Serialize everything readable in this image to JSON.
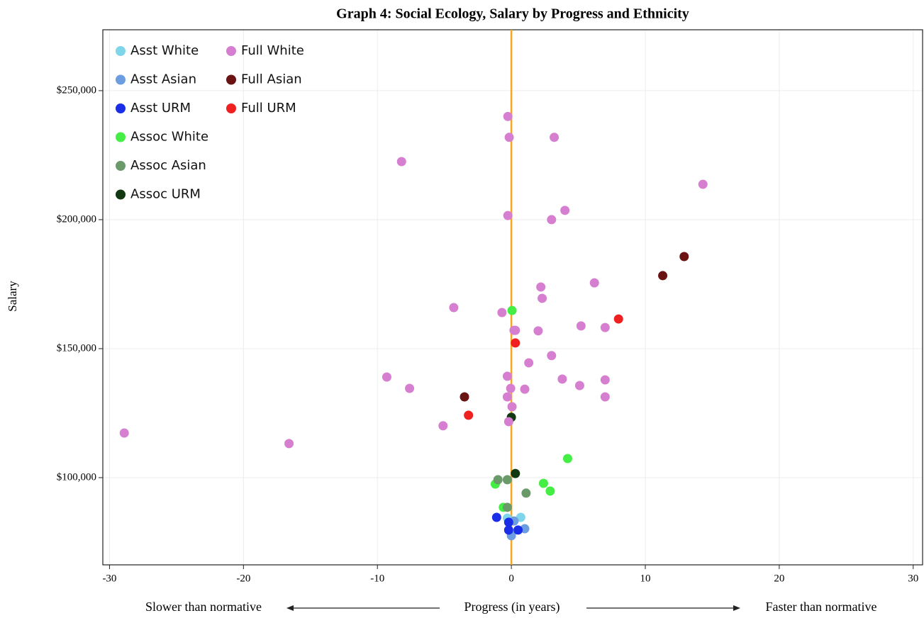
{
  "chart_data": {
    "type": "scatter",
    "title": "Graph 4: Social Ecology, Salary by Progress and Ethnicity",
    "x_label": "Progress (in years)",
    "y_label": "Salary",
    "annotations": [
      "Slower than normative",
      "Faster than normative"
    ],
    "xlim": [
      -30.5,
      30.7
    ],
    "ylim": [
      66200,
      273600
    ],
    "xticks": [
      -30,
      -20,
      -10,
      0,
      10,
      20,
      30
    ],
    "yticks": [
      {
        "value": 100000,
        "label": "$100,000"
      },
      {
        "value": 150000,
        "label": "$150,000"
      },
      {
        "value": 200000,
        "label": "$200,000"
      },
      {
        "value": 250000,
        "label": "$250,000"
      }
    ],
    "grid": true,
    "reference_line_x": 0,
    "reference_line_color": "#f5a623",
    "legend": "upper left",
    "series": [
      {
        "name": "Asst White",
        "color": "#7fd6ea",
        "x": [
          0.7,
          -0.3
        ],
        "y": [
          84600,
          84300
        ]
      },
      {
        "name": "Asst Asian",
        "color": "#6c9de0",
        "x": [
          1.0,
          0,
          0.2
        ],
        "y": [
          80200,
          77500,
          83200
        ]
      },
      {
        "name": "Asst URM",
        "color": "#1a2ee8",
        "x": [
          -1.1,
          -0.2,
          -0.2,
          0.5
        ],
        "y": [
          84600,
          82700,
          79700,
          79700
        ]
      },
      {
        "name": "Assoc White",
        "color": "#44ee44",
        "x": [
          0.05,
          4.2,
          2.4,
          2.9,
          -1.2,
          -0.6
        ],
        "y": [
          164800,
          107400,
          97800,
          94800,
          97500,
          88500
        ]
      },
      {
        "name": "Assoc Asian",
        "color": "#6a9a6a",
        "x": [
          -1.0,
          -0.3,
          1.1,
          -0.3
        ],
        "y": [
          99200,
          99200,
          94000,
          88500
        ]
      },
      {
        "name": "Assoc URM",
        "color": "#123812",
        "x": [
          0,
          0.3
        ],
        "y": [
          123400,
          101600
        ]
      },
      {
        "name": "Full White",
        "color": "#d67fd0",
        "x": [
          -0.26,
          -0.16,
          3.2,
          -8.2,
          14.3,
          -0.26,
          4.0,
          3.0,
          6.2,
          2.2,
          2.3,
          -4.3,
          -0.7,
          0.2,
          0.3,
          2.0,
          5.2,
          7.0,
          3.0,
          1.3,
          -9.3,
          -0.3,
          3.8,
          7.0,
          -7.6,
          -0.05,
          1.0,
          5.1,
          -0.3,
          7.0,
          0.05,
          -0.2,
          -5.1,
          -28.9,
          -16.6
        ],
        "y": [
          240000,
          231900,
          231900,
          222500,
          213700,
          201600,
          203600,
          200000,
          175500,
          173900,
          169500,
          165900,
          164000,
          157100,
          157100,
          156900,
          158800,
          158200,
          147300,
          144500,
          139000,
          139300,
          138200,
          137900,
          134600,
          134600,
          134300,
          135700,
          131300,
          131300,
          127500,
          121700,
          120100,
          117300,
          113200
        ]
      },
      {
        "name": "Full Asian",
        "color": "#6b1212",
        "x": [
          12.9,
          11.3,
          -3.5
        ],
        "y": [
          185700,
          178300,
          131300
        ]
      },
      {
        "name": "Full URM",
        "color": "#f02020",
        "x": [
          8.0,
          0.3,
          -3.2
        ],
        "y": [
          161500,
          152200,
          124200
        ]
      }
    ]
  }
}
